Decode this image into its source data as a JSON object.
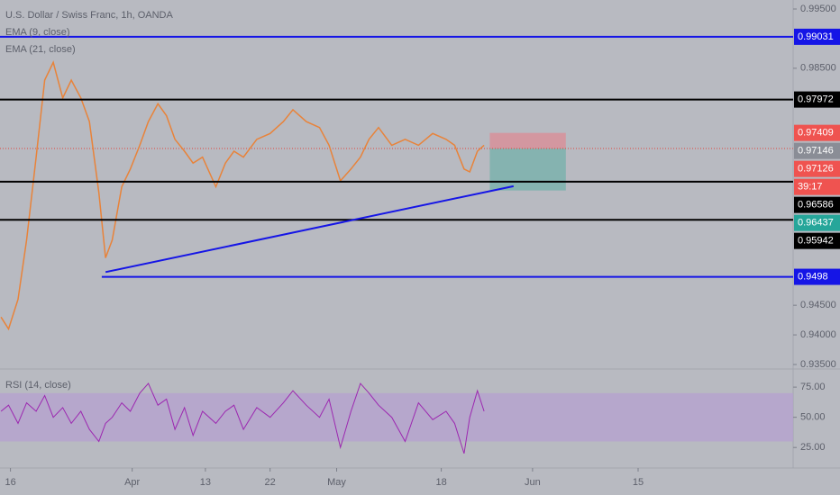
{
  "chart_data": [
    {
      "type": "line",
      "title": "U.S. Dollar / Swiss Franc, 1h, OANDA",
      "legend": [
        "EMA (9, close)",
        "EMA (21, close)"
      ],
      "x": [
        -1.0,
        -0.2,
        0.8,
        1.7,
        2.7,
        3.6,
        4.5,
        5.5,
        6.4,
        7.4,
        8.3,
        9.3,
        10.0,
        10.7,
        11.7,
        12.6,
        13.6,
        14.5,
        15.5,
        16.4,
        17.3,
        18.3,
        19.2,
        20.2,
        21.6,
        22.6,
        23.5,
        24.5,
        25.9,
        27.3,
        28.7,
        29.7,
        31.1,
        32.5,
        33.5,
        34.7,
        35.8,
        36.8,
        37.7,
        38.7,
        40.1,
        41.5,
        42.9,
        44.4,
        45.8,
        46.7,
        47.7,
        48.3,
        49.1,
        49.8
      ],
      "series": [
        {
          "color": "#e8833a",
          "values": [
            0.943,
            0.941,
            0.946,
            0.956,
            0.97,
            0.983,
            0.986,
            0.98,
            0.983,
            0.98,
            0.976,
            0.964,
            0.953,
            0.956,
            0.965,
            0.968,
            0.972,
            0.976,
            0.979,
            0.977,
            0.973,
            0.971,
            0.969,
            0.97,
            0.965,
            0.969,
            0.971,
            0.97,
            0.973,
            0.974,
            0.976,
            0.978,
            0.976,
            0.975,
            0.972,
            0.966,
            0.968,
            0.97,
            0.973,
            0.975,
            0.972,
            0.973,
            0.972,
            0.974,
            0.973,
            0.972,
            0.968,
            0.9675,
            0.971,
            0.972
          ]
        }
      ],
      "xlim": [
        -1.1,
        82.3
      ],
      "xticks": [
        {
          "value": 0,
          "label": "16"
        },
        {
          "value": 12.8,
          "label": "Apr"
        },
        {
          "value": 20.5,
          "label": "13"
        },
        {
          "value": 27.3,
          "label": "22"
        },
        {
          "value": 34.3,
          "label": "May"
        },
        {
          "value": 45.3,
          "label": "18"
        },
        {
          "value": 54.9,
          "label": "Jun"
        },
        {
          "value": 66.0,
          "label": "15"
        }
      ],
      "ylim": [
        0.93424,
        0.99652
      ],
      "yticks": [
        {
          "value": 0.995,
          "label": "0.99500"
        },
        {
          "value": 0.985,
          "label": "0.98500"
        },
        {
          "value": 0.945,
          "label": "0.94500"
        },
        {
          "value": 0.94,
          "label": "0.94000"
        },
        {
          "value": 0.935,
          "label": "0.93500"
        }
      ],
      "levels": [
        {
          "value": 0.99031,
          "color": "#1515e6",
          "from": -1.1
        },
        {
          "value": 0.97972,
          "color": "#000000",
          "from": -1.1
        },
        {
          "value": 0.96586,
          "color": "#000000",
          "from": -1.1
        },
        {
          "value": 0.95942,
          "color": "#000000",
          "from": -1.1
        },
        {
          "value": 0.9498,
          "color": "#1515e6",
          "from": 9.6
        }
      ],
      "trendline": {
        "color": "#1515e6",
        "x": [
          10.0,
          52.9
        ],
        "values": [
          0.9506,
          0.9651
        ]
      },
      "position": {
        "x": [
          50.4,
          58.4
        ],
        "stop": 0.97409,
        "entry": 0.97146,
        "target": 0.96437
      },
      "current_price": 0.97146,
      "ema_price": 0.97126,
      "countdown": "39:17"
    },
    {
      "type": "line",
      "title": "RSI (14, close)",
      "x": [
        -1.0,
        -0.2,
        0.8,
        1.7,
        2.7,
        3.6,
        4.5,
        5.5,
        6.4,
        7.4,
        8.3,
        9.3,
        10.0,
        10.7,
        11.7,
        12.6,
        13.6,
        14.5,
        15.5,
        16.4,
        17.3,
        18.3,
        19.2,
        20.2,
        21.6,
        22.6,
        23.5,
        24.5,
        25.9,
        27.3,
        28.7,
        29.7,
        31.1,
        32.5,
        33.5,
        34.7,
        35.8,
        36.8,
        37.7,
        38.7,
        40.1,
        41.5,
        42.9,
        44.4,
        45.8,
        46.7,
        47.7,
        48.3,
        49.1,
        49.8
      ],
      "series": [
        {
          "color": "#9c27b0",
          "values": [
            55,
            60,
            45,
            62,
            55,
            68,
            50,
            58,
            45,
            55,
            40,
            30,
            45,
            50,
            62,
            55,
            70,
            78,
            60,
            65,
            40,
            58,
            35,
            55,
            45,
            55,
            60,
            40,
            58,
            50,
            62,
            72,
            60,
            50,
            65,
            25,
            55,
            78,
            70,
            60,
            50,
            30,
            62,
            48,
            55,
            45,
            20,
            50,
            72,
            55
          ]
        }
      ],
      "band": [
        30,
        70
      ],
      "xlim": [
        -1.1,
        82.3
      ],
      "ylim": [
        8,
        90
      ],
      "yticks": [
        {
          "value": 75,
          "label": "75.00"
        },
        {
          "value": 50,
          "label": "50.00"
        },
        {
          "value": 25,
          "label": "25.00"
        }
      ]
    }
  ]
}
